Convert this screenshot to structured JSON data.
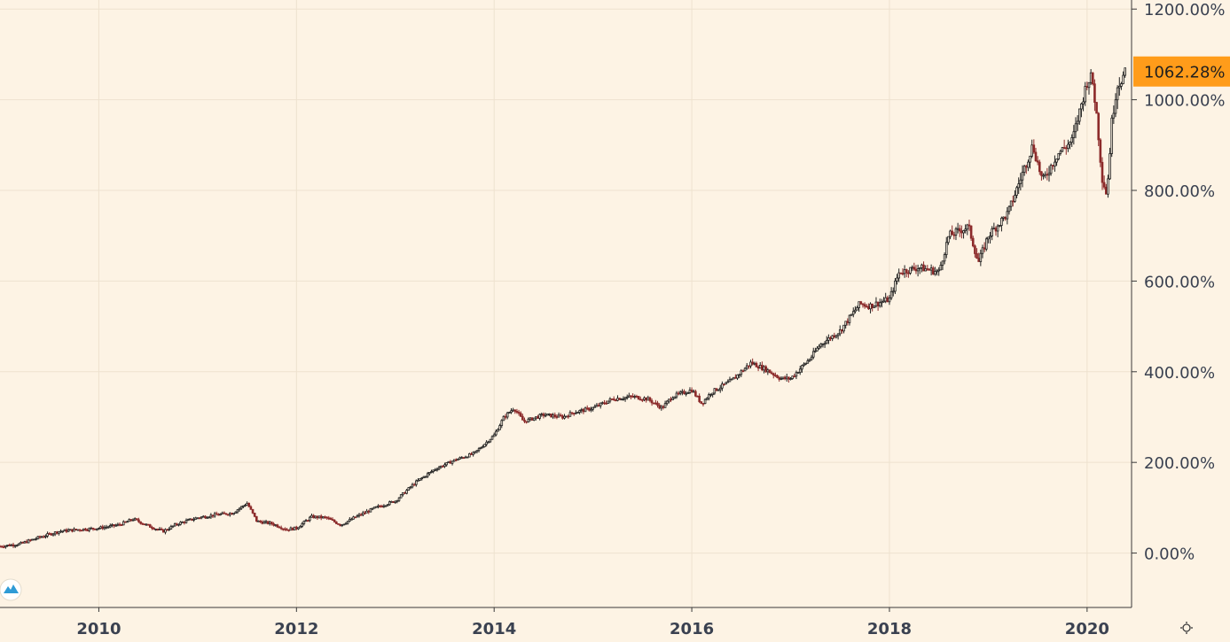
{
  "chart_data": {
    "type": "candlestick",
    "title": "",
    "xlabel": "",
    "ylabel": "",
    "x_ticks": [
      {
        "label": "2010",
        "year": 2010.0
      },
      {
        "label": "2012",
        "year": 2012.0
      },
      {
        "label": "2014",
        "year": 2014.0
      },
      {
        "label": "2016",
        "year": 2016.0
      },
      {
        "label": "2018",
        "year": 2018.0
      },
      {
        "label": "2020",
        "year": 2020.0
      }
    ],
    "y_ticks": [
      {
        "label": "1200.00%",
        "value": 1200
      },
      {
        "label": "1000.00%",
        "value": 1000
      },
      {
        "label": "800.00%",
        "value": 800
      },
      {
        "label": "600.00%",
        "value": 600
      },
      {
        "label": "400.00%",
        "value": 400
      },
      {
        "label": "200.00%",
        "value": 200
      },
      {
        "label": "0.00%",
        "value": 0
      }
    ],
    "xlim": [
      2009.0,
      2020.45
    ],
    "ylim": [
      -120,
      1220
    ],
    "grid": true,
    "last_value": {
      "label": "1062.28%",
      "value": 1062.28
    },
    "colors": {
      "background": "#fdf3e4",
      "grid": "#eee2cf",
      "axis": "#3a3a3a",
      "candle_up": "#1f1f1f",
      "candle_down": "#8c2a2a",
      "highlight": "#ff9c1a",
      "text": "#3a4150"
    },
    "series": [
      {
        "x": [
          2009.0,
          2009.2,
          2009.4,
          2009.6,
          2009.8,
          2010.0,
          2010.2,
          2010.35,
          2010.5,
          2010.65,
          2010.8,
          2011.0,
          2011.2,
          2011.35,
          2011.5,
          2011.6,
          2011.75,
          2011.9,
          2012.0,
          2012.15,
          2012.3,
          2012.45,
          2012.6,
          2012.8,
          2013.0,
          2013.2,
          2013.4,
          2013.6,
          2013.8,
          2014.0,
          2014.1,
          2014.2,
          2014.3,
          2014.5,
          2014.7,
          2014.8,
          2015.0,
          2015.2,
          2015.4,
          2015.55,
          2015.7,
          2015.8,
          2016.0,
          2016.1,
          2016.2,
          2016.4,
          2016.6,
          2016.75,
          2016.9,
          2017.0,
          2017.2,
          2017.3,
          2017.5,
          2017.7,
          2017.8,
          2018.0,
          2018.1,
          2018.3,
          2018.5,
          2018.6,
          2018.8,
          2018.9,
          2019.0,
          2019.2,
          2019.35,
          2019.45,
          2019.55,
          2019.7,
          2019.85,
          2020.0,
          2020.05,
          2020.1,
          2020.15,
          2020.2,
          2020.25,
          2020.3,
          2020.4
        ],
        "y": [
          15,
          20,
          35,
          48,
          52,
          55,
          62,
          75,
          60,
          48,
          65,
          78,
          85,
          88,
          110,
          70,
          65,
          52,
          55,
          80,
          78,
          62,
          80,
          100,
          115,
          155,
          185,
          205,
          220,
          260,
          300,
          320,
          290,
          305,
          300,
          310,
          320,
          340,
          345,
          340,
          320,
          345,
          360,
          330,
          355,
          380,
          420,
          405,
          385,
          385,
          430,
          460,
          490,
          550,
          545,
          560,
          620,
          630,
          620,
          700,
          720,
          640,
          700,
          750,
          840,
          900,
          820,
          880,
          910,
          1040,
          1050,
          960,
          830,
          790,
          950,
          1030,
          1062.28
        ]
      }
    ]
  }
}
